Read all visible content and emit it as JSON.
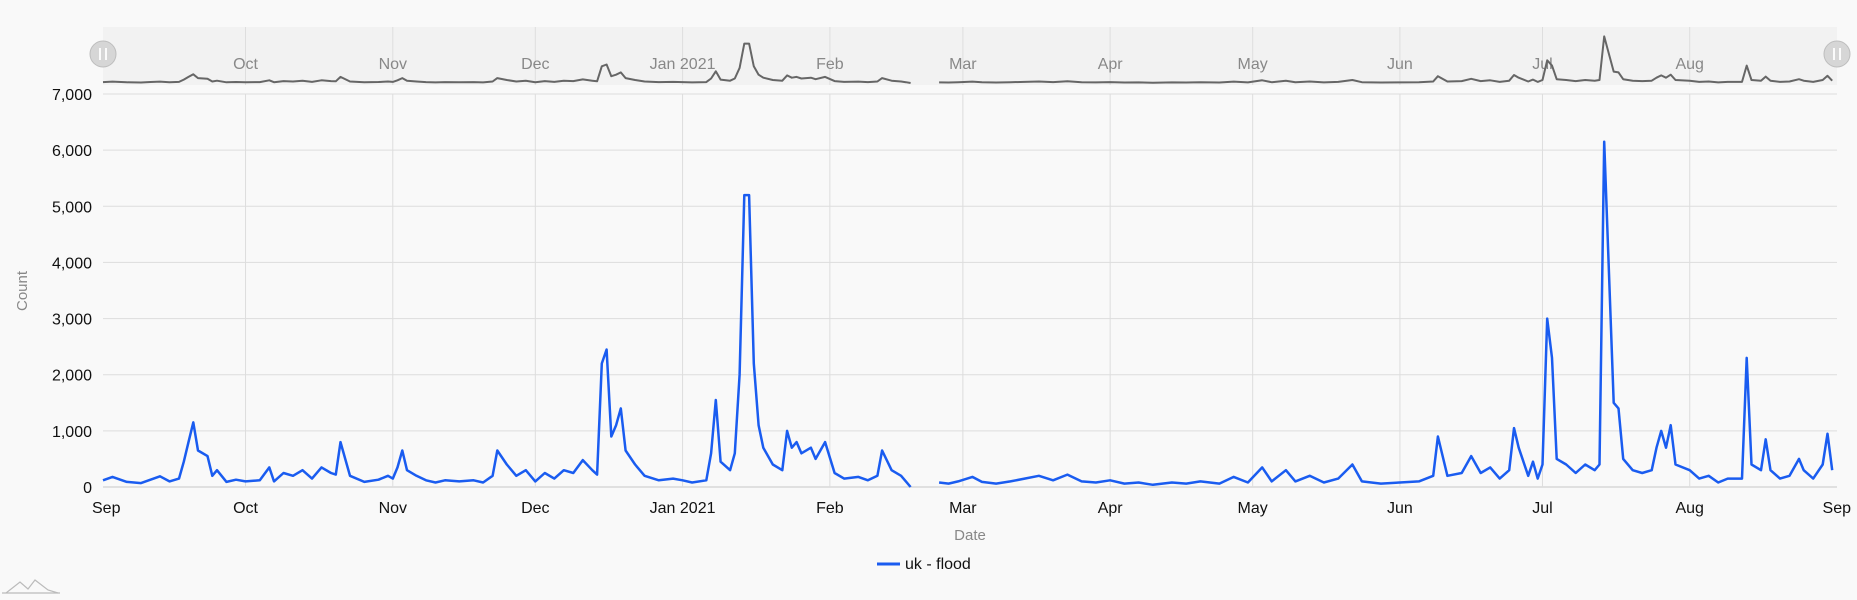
{
  "chart_data": {
    "type": "line",
    "xlabel": "Date",
    "ylabel": "Count",
    "ylim": [
      0,
      7000
    ],
    "yticks": [
      0,
      1000,
      2000,
      3000,
      4000,
      5000,
      6000,
      7000
    ],
    "ytick_labels": [
      "0",
      "1,000",
      "2,000",
      "3,000",
      "4,000",
      "5,000",
      "6,000",
      "7,000"
    ],
    "xlim": [
      "2020-09-01",
      "2021-09-01"
    ],
    "xticks": [
      "2020-09-01",
      "2020-10-01",
      "2020-11-01",
      "2020-12-01",
      "2021-01-01",
      "2021-02-01",
      "2021-03-01",
      "2021-04-01",
      "2021-05-01",
      "2021-06-01",
      "2021-07-01",
      "2021-08-01",
      "2021-09-01"
    ],
    "xtick_labels": [
      "Sep",
      "Oct",
      "Nov",
      "Dec",
      "Jan 2021",
      "Feb",
      "Mar",
      "Apr",
      "May",
      "Jun",
      "Jul",
      "Aug",
      "Sep"
    ],
    "navigator_labels": [
      "Oct",
      "Nov",
      "Dec",
      "Jan 2021",
      "Feb",
      "Mar",
      "Apr",
      "May",
      "Jun",
      "Jul",
      "Aug"
    ],
    "grid": true,
    "legend_position": "bottom-center",
    "series": [
      {
        "name": "uk - flood",
        "color": "#1a5cf0",
        "points": [
          [
            "2020-09-01",
            120
          ],
          [
            "2020-09-03",
            180
          ],
          [
            "2020-09-06",
            90
          ],
          [
            "2020-09-09",
            70
          ],
          [
            "2020-09-11",
            130
          ],
          [
            "2020-09-13",
            190
          ],
          [
            "2020-09-15",
            100
          ],
          [
            "2020-09-17",
            150
          ],
          [
            "2020-09-18",
            450
          ],
          [
            "2020-09-19",
            800
          ],
          [
            "2020-09-20",
            1150
          ],
          [
            "2020-09-21",
            650
          ],
          [
            "2020-09-23",
            550
          ],
          [
            "2020-09-24",
            200
          ],
          [
            "2020-09-25",
            300
          ],
          [
            "2020-09-27",
            90
          ],
          [
            "2020-09-29",
            130
          ],
          [
            "2020-10-01",
            100
          ],
          [
            "2020-10-04",
            120
          ],
          [
            "2020-10-06",
            350
          ],
          [
            "2020-10-07",
            100
          ],
          [
            "2020-10-09",
            250
          ],
          [
            "2020-10-11",
            200
          ],
          [
            "2020-10-13",
            300
          ],
          [
            "2020-10-15",
            150
          ],
          [
            "2020-10-17",
            350
          ],
          [
            "2020-10-19",
            250
          ],
          [
            "2020-10-20",
            220
          ],
          [
            "2020-10-21",
            800
          ],
          [
            "2020-10-23",
            200
          ],
          [
            "2020-10-26",
            90
          ],
          [
            "2020-10-29",
            130
          ],
          [
            "2020-10-31",
            200
          ],
          [
            "2020-11-01",
            150
          ],
          [
            "2020-11-02",
            350
          ],
          [
            "2020-11-03",
            650
          ],
          [
            "2020-11-04",
            300
          ],
          [
            "2020-11-06",
            200
          ],
          [
            "2020-11-08",
            120
          ],
          [
            "2020-11-10",
            80
          ],
          [
            "2020-11-12",
            120
          ],
          [
            "2020-11-15",
            100
          ],
          [
            "2020-11-18",
            120
          ],
          [
            "2020-11-20",
            80
          ],
          [
            "2020-11-22",
            200
          ],
          [
            "2020-11-23",
            650
          ],
          [
            "2020-11-25",
            400
          ],
          [
            "2020-11-27",
            200
          ],
          [
            "2020-11-29",
            300
          ],
          [
            "2020-12-01",
            100
          ],
          [
            "2020-12-03",
            250
          ],
          [
            "2020-12-05",
            150
          ],
          [
            "2020-12-07",
            300
          ],
          [
            "2020-12-09",
            250
          ],
          [
            "2020-12-11",
            480
          ],
          [
            "2020-12-13",
            300
          ],
          [
            "2020-12-14",
            220
          ],
          [
            "2020-12-15",
            2200
          ],
          [
            "2020-12-16",
            2450
          ],
          [
            "2020-12-17",
            900
          ],
          [
            "2020-12-18",
            1100
          ],
          [
            "2020-12-19",
            1400
          ],
          [
            "2020-12-20",
            650
          ],
          [
            "2020-12-22",
            400
          ],
          [
            "2020-12-24",
            200
          ],
          [
            "2020-12-27",
            120
          ],
          [
            "2020-12-30",
            150
          ],
          [
            "2021-01-01",
            120
          ],
          [
            "2021-01-03",
            80
          ],
          [
            "2021-01-06",
            120
          ],
          [
            "2021-01-07",
            600
          ],
          [
            "2021-01-08",
            1550
          ],
          [
            "2021-01-09",
            450
          ],
          [
            "2021-01-11",
            300
          ],
          [
            "2021-01-12",
            600
          ],
          [
            "2021-01-13",
            2000
          ],
          [
            "2021-01-14",
            5200
          ],
          [
            "2021-01-15",
            5200
          ],
          [
            "2021-01-16",
            2200
          ],
          [
            "2021-01-17",
            1100
          ],
          [
            "2021-01-18",
            700
          ],
          [
            "2021-01-20",
            400
          ],
          [
            "2021-01-22",
            300
          ],
          [
            "2021-01-23",
            1000
          ],
          [
            "2021-01-24",
            700
          ],
          [
            "2021-01-25",
            800
          ],
          [
            "2021-01-26",
            600
          ],
          [
            "2021-01-28",
            700
          ],
          [
            "2021-01-29",
            500
          ],
          [
            "2021-01-31",
            800
          ],
          [
            "2021-02-02",
            250
          ],
          [
            "2021-02-04",
            150
          ],
          [
            "2021-02-07",
            180
          ],
          [
            "2021-02-09",
            120
          ],
          [
            "2021-02-11",
            200
          ],
          [
            "2021-02-12",
            650
          ],
          [
            "2021-02-14",
            300
          ],
          [
            "2021-02-16",
            200
          ],
          [
            "2021-02-17",
            100
          ],
          [
            "2021-02-18",
            0
          ]
        ]
      },
      {
        "name": "",
        "color": "#1a5cf0",
        "points": [
          [
            "2021-02-24",
            80
          ],
          [
            "2021-02-26",
            60
          ],
          [
            "2021-02-28",
            100
          ],
          [
            "2021-03-03",
            180
          ],
          [
            "2021-03-05",
            90
          ],
          [
            "2021-03-08",
            60
          ],
          [
            "2021-03-11",
            100
          ],
          [
            "2021-03-14",
            150
          ],
          [
            "2021-03-17",
            200
          ],
          [
            "2021-03-20",
            120
          ],
          [
            "2021-03-23",
            220
          ],
          [
            "2021-03-26",
            100
          ],
          [
            "2021-03-29",
            80
          ],
          [
            "2021-04-01",
            120
          ],
          [
            "2021-04-04",
            60
          ],
          [
            "2021-04-07",
            80
          ],
          [
            "2021-04-10",
            40
          ],
          [
            "2021-04-14",
            80
          ],
          [
            "2021-04-17",
            60
          ],
          [
            "2021-04-20",
            100
          ],
          [
            "2021-04-24",
            60
          ],
          [
            "2021-04-27",
            180
          ],
          [
            "2021-04-30",
            80
          ],
          [
            "2021-05-03",
            350
          ],
          [
            "2021-05-05",
            100
          ],
          [
            "2021-05-08",
            300
          ],
          [
            "2021-05-10",
            100
          ],
          [
            "2021-05-13",
            200
          ],
          [
            "2021-05-16",
            80
          ],
          [
            "2021-05-19",
            150
          ],
          [
            "2021-05-22",
            400
          ],
          [
            "2021-05-24",
            100
          ],
          [
            "2021-05-28",
            60
          ],
          [
            "2021-06-01",
            80
          ],
          [
            "2021-06-05",
            100
          ],
          [
            "2021-06-08",
            200
          ],
          [
            "2021-06-09",
            900
          ],
          [
            "2021-06-11",
            200
          ],
          [
            "2021-06-14",
            250
          ],
          [
            "2021-06-16",
            550
          ],
          [
            "2021-06-18",
            250
          ],
          [
            "2021-06-20",
            350
          ],
          [
            "2021-06-22",
            150
          ],
          [
            "2021-06-24",
            300
          ],
          [
            "2021-06-25",
            1050
          ],
          [
            "2021-06-26",
            700
          ],
          [
            "2021-06-28",
            200
          ],
          [
            "2021-06-29",
            450
          ],
          [
            "2021-06-30",
            150
          ],
          [
            "2021-07-01",
            400
          ],
          [
            "2021-07-02",
            3000
          ],
          [
            "2021-07-03",
            2300
          ],
          [
            "2021-07-04",
            500
          ],
          [
            "2021-07-06",
            400
          ],
          [
            "2021-07-08",
            250
          ],
          [
            "2021-07-10",
            400
          ],
          [
            "2021-07-12",
            300
          ],
          [
            "2021-07-13",
            400
          ],
          [
            "2021-07-14",
            6150
          ],
          [
            "2021-07-15",
            3800
          ],
          [
            "2021-07-16",
            1500
          ],
          [
            "2021-07-17",
            1400
          ],
          [
            "2021-07-18",
            500
          ],
          [
            "2021-07-20",
            300
          ],
          [
            "2021-07-22",
            250
          ],
          [
            "2021-07-24",
            300
          ],
          [
            "2021-07-25",
            700
          ],
          [
            "2021-07-26",
            1000
          ],
          [
            "2021-07-27",
            700
          ],
          [
            "2021-07-28",
            1100
          ],
          [
            "2021-07-29",
            400
          ],
          [
            "2021-08-01",
            300
          ],
          [
            "2021-08-03",
            150
          ],
          [
            "2021-08-05",
            200
          ],
          [
            "2021-08-07",
            80
          ],
          [
            "2021-08-09",
            150
          ],
          [
            "2021-08-12",
            150
          ],
          [
            "2021-08-13",
            2300
          ],
          [
            "2021-08-14",
            400
          ],
          [
            "2021-08-16",
            300
          ],
          [
            "2021-08-17",
            850
          ],
          [
            "2021-08-18",
            300
          ],
          [
            "2021-08-20",
            150
          ],
          [
            "2021-08-22",
            200
          ],
          [
            "2021-08-24",
            500
          ],
          [
            "2021-08-25",
            300
          ],
          [
            "2021-08-27",
            150
          ],
          [
            "2021-08-29",
            400
          ],
          [
            "2021-08-30",
            950
          ],
          [
            "2021-08-31",
            300
          ]
        ]
      }
    ]
  },
  "ui": {
    "logo_icon": "mountains-icon",
    "navigator_handle_icon": "grip-lines-icon"
  }
}
